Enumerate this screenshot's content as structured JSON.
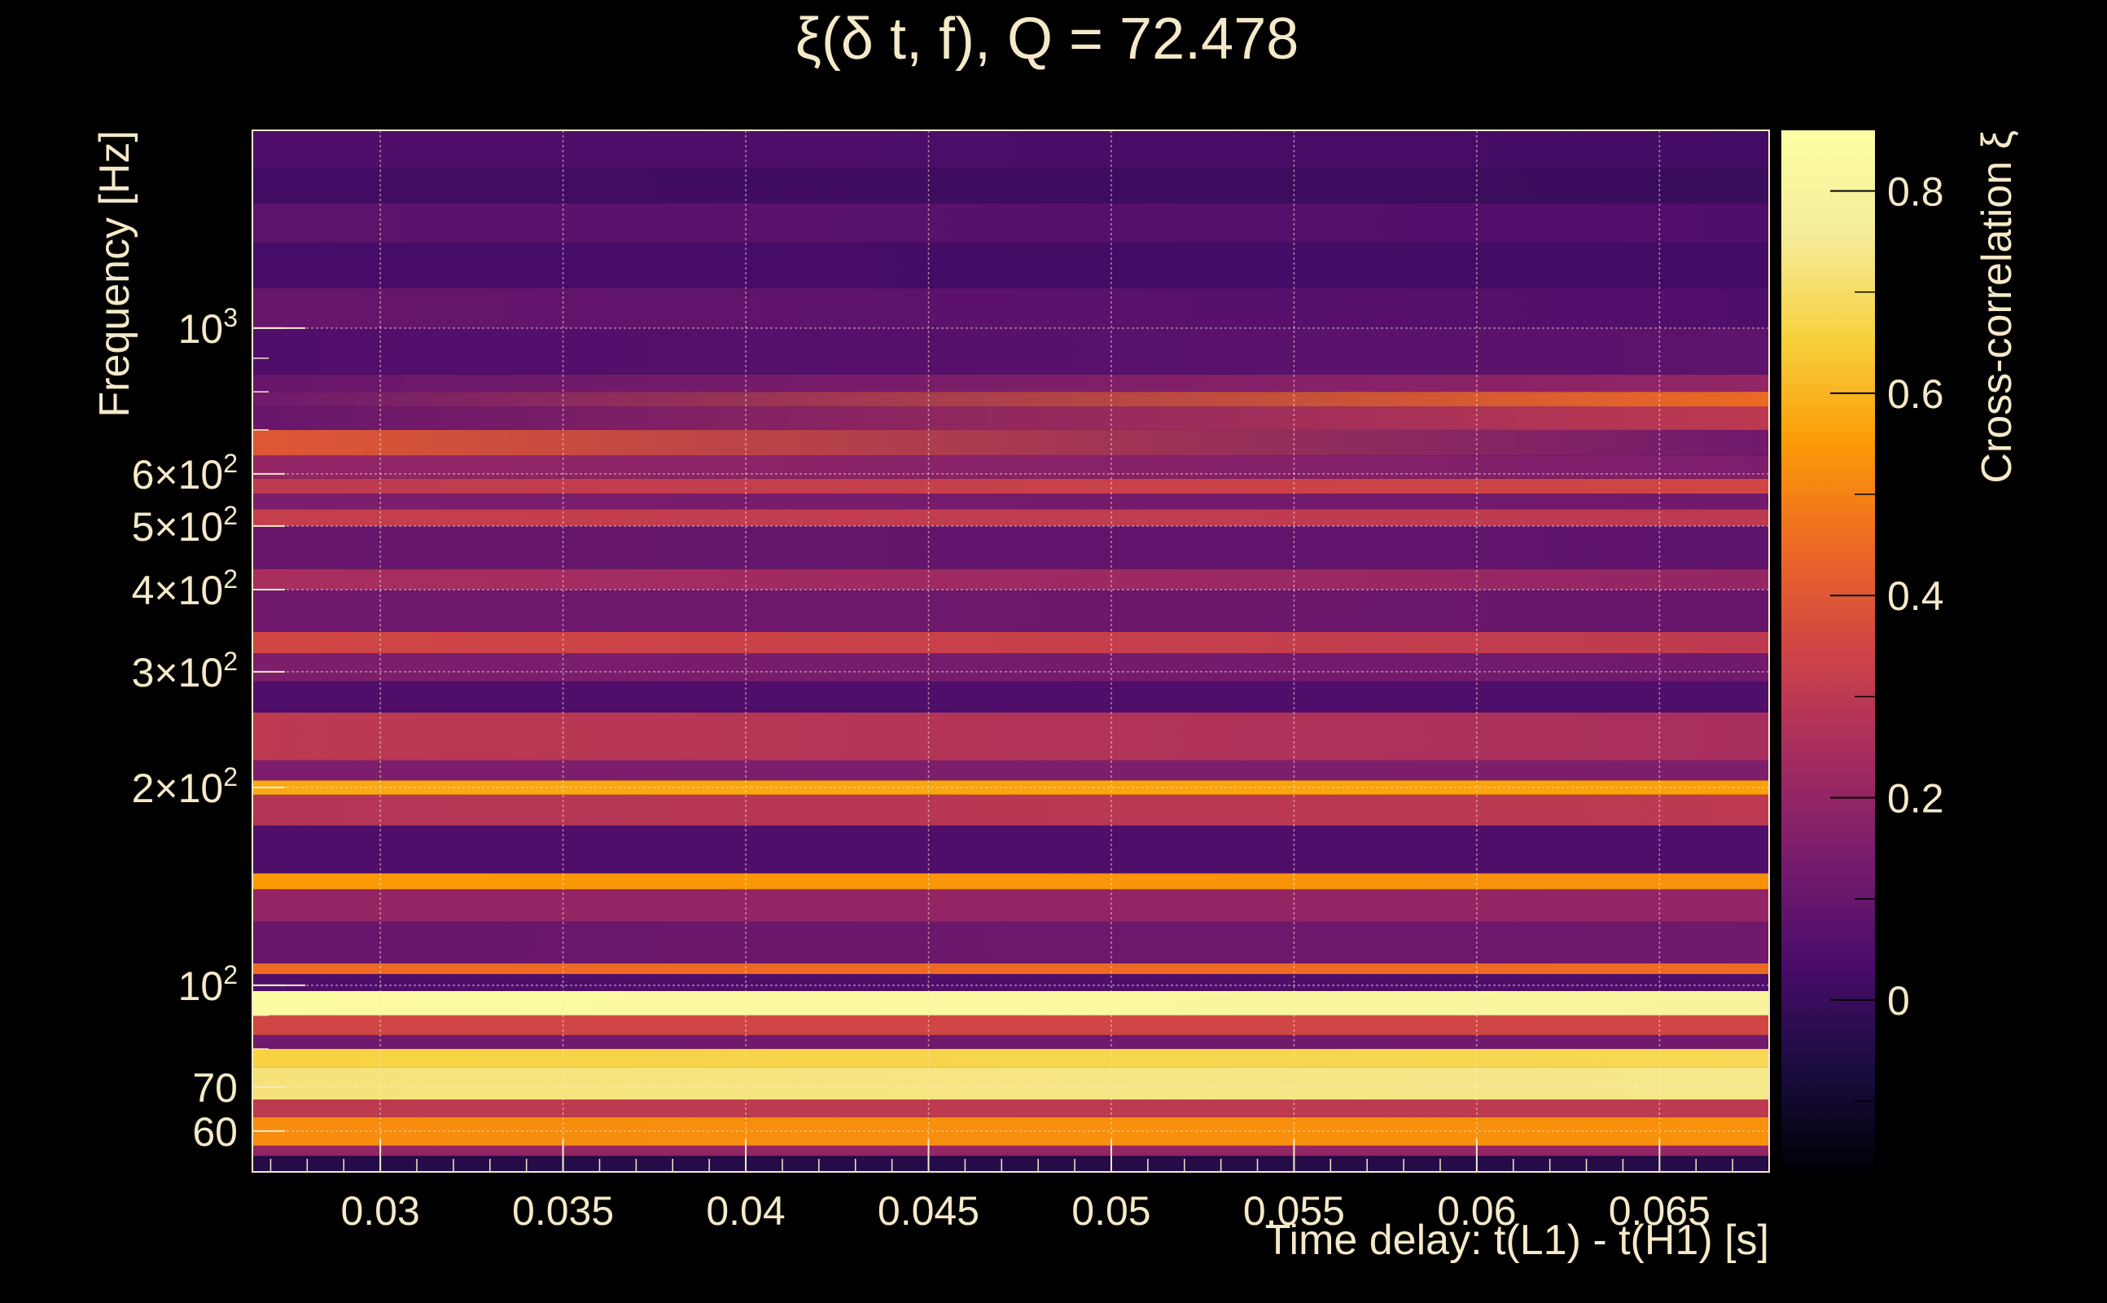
{
  "chart_data": {
    "type": "heatmap",
    "title": "ξ(δ t, f), Q = 72.478",
    "xlabel": "Time delay: t(L1) - t(H1) [s]",
    "ylabel": "Frequency [Hz]",
    "colorbar_label": "Cross-correlation ξ",
    "x_range": [
      0.0265,
      0.068
    ],
    "y_range": [
      52,
      2000
    ],
    "y_scale": "log",
    "z_range": [
      -0.17,
      0.86
    ],
    "grid": true,
    "colormap": "inferno",
    "x_ticks": [
      {
        "value": 0.03,
        "label": "0.03"
      },
      {
        "value": 0.035,
        "label": "0.035"
      },
      {
        "value": 0.04,
        "label": "0.04"
      },
      {
        "value": 0.045,
        "label": "0.045"
      },
      {
        "value": 0.05,
        "label": "0.05"
      },
      {
        "value": 0.055,
        "label": "0.055"
      },
      {
        "value": 0.06,
        "label": "0.06"
      },
      {
        "value": 0.065,
        "label": "0.065"
      }
    ],
    "y_ticks": [
      {
        "value": 60,
        "base": "60",
        "exp": ""
      },
      {
        "value": 70,
        "base": "70",
        "exp": ""
      },
      {
        "value": 100,
        "base": "10",
        "exp": "2"
      },
      {
        "value": 200,
        "base": "2×10",
        "exp": "2"
      },
      {
        "value": 300,
        "base": "3×10",
        "exp": "2"
      },
      {
        "value": 400,
        "base": "4×10",
        "exp": "2"
      },
      {
        "value": 500,
        "base": "5×10",
        "exp": "2"
      },
      {
        "value": 600,
        "base": "6×10",
        "exp": "2"
      },
      {
        "value": 1000,
        "base": "10",
        "exp": "3"
      }
    ],
    "colorbar_ticks": [
      {
        "value": 0,
        "label": "0"
      },
      {
        "value": 0.2,
        "label": "0.2"
      },
      {
        "value": 0.4,
        "label": "0.4"
      },
      {
        "value": 0.6,
        "label": "0.6"
      },
      {
        "value": 0.8,
        "label": "0.8"
      }
    ],
    "frequency_bands": [
      {
        "f_lo": 52,
        "f_hi": 55,
        "xi": -0.05,
        "xi_end": -0.05
      },
      {
        "f_lo": 55,
        "f_hi": 57,
        "xi": 0.2,
        "xi_end": 0.2
      },
      {
        "f_lo": 57,
        "f_hi": 63,
        "xi": 0.52,
        "xi_end": 0.53
      },
      {
        "f_lo": 63,
        "f_hi": 67,
        "xi": 0.3,
        "xi_end": 0.3
      },
      {
        "f_lo": 67,
        "f_hi": 75,
        "xi": 0.72,
        "xi_end": 0.74
      },
      {
        "f_lo": 75,
        "f_hi": 80,
        "xi": 0.66,
        "xi_end": 0.68
      },
      {
        "f_lo": 80,
        "f_hi": 84,
        "xi": 0.12,
        "xi_end": 0.12
      },
      {
        "f_lo": 84,
        "f_hi": 90,
        "xi": 0.35,
        "xi_end": 0.35
      },
      {
        "f_lo": 90,
        "f_hi": 98,
        "xi": 0.84,
        "xi_end": 0.8
      },
      {
        "f_lo": 98,
        "f_hi": 104,
        "xi": 0.05,
        "xi_end": 0.05
      },
      {
        "f_lo": 104,
        "f_hi": 108,
        "xi": 0.45,
        "xi_end": 0.45
      },
      {
        "f_lo": 108,
        "f_hi": 125,
        "xi": 0.1,
        "xi_end": 0.12
      },
      {
        "f_lo": 125,
        "f_hi": 140,
        "xi": 0.2,
        "xi_end": 0.2
      },
      {
        "f_lo": 140,
        "f_hi": 148,
        "xi": 0.55,
        "xi_end": 0.53
      },
      {
        "f_lo": 148,
        "f_hi": 175,
        "xi": 0.05,
        "xi_end": 0.05
      },
      {
        "f_lo": 175,
        "f_hi": 195,
        "xi": 0.28,
        "xi_end": 0.3
      },
      {
        "f_lo": 195,
        "f_hi": 205,
        "xi": 0.58,
        "xi_end": 0.56
      },
      {
        "f_lo": 205,
        "f_hi": 220,
        "xi": 0.15,
        "xi_end": 0.15
      },
      {
        "f_lo": 220,
        "f_hi": 260,
        "xi": 0.3,
        "xi_end": 0.25
      },
      {
        "f_lo": 260,
        "f_hi": 290,
        "xi": 0.05,
        "xi_end": 0.05
      },
      {
        "f_lo": 290,
        "f_hi": 320,
        "xi": 0.15,
        "xi_end": 0.12
      },
      {
        "f_lo": 320,
        "f_hi": 345,
        "xi": 0.35,
        "xi_end": 0.3
      },
      {
        "f_lo": 345,
        "f_hi": 400,
        "xi": 0.12,
        "xi_end": 0.1
      },
      {
        "f_lo": 400,
        "f_hi": 430,
        "xi": 0.25,
        "xi_end": 0.2
      },
      {
        "f_lo": 430,
        "f_hi": 500,
        "xi": 0.1,
        "xi_end": 0.08
      },
      {
        "f_lo": 500,
        "f_hi": 530,
        "xi": 0.32,
        "xi_end": 0.3
      },
      {
        "f_lo": 530,
        "f_hi": 560,
        "xi": 0.15,
        "xi_end": 0.12
      },
      {
        "f_lo": 560,
        "f_hi": 590,
        "xi": 0.3,
        "xi_end": 0.35
      },
      {
        "f_lo": 590,
        "f_hi": 640,
        "xi": 0.2,
        "xi_end": 0.15
      },
      {
        "f_lo": 640,
        "f_hi": 700,
        "xi": 0.4,
        "xi_end": 0.12
      },
      {
        "f_lo": 700,
        "f_hi": 760,
        "xi": 0.1,
        "xi_end": 0.3
      },
      {
        "f_lo": 760,
        "f_hi": 800,
        "xi": 0.12,
        "xi_end": 0.45
      },
      {
        "f_lo": 800,
        "f_hi": 850,
        "xi": 0.1,
        "xi_end": 0.2
      },
      {
        "f_lo": 850,
        "f_hi": 1000,
        "xi": 0.05,
        "xi_end": 0.08
      },
      {
        "f_lo": 1000,
        "f_hi": 1150,
        "xi": 0.1,
        "xi_end": 0.05
      },
      {
        "f_lo": 1150,
        "f_hi": 1350,
        "xi": 0.03,
        "xi_end": 0.02
      },
      {
        "f_lo": 1350,
        "f_hi": 1550,
        "xi": 0.08,
        "xi_end": 0.05
      },
      {
        "f_lo": 1550,
        "f_hi": 1750,
        "xi": 0.02,
        "xi_end": 0.0
      },
      {
        "f_lo": 1750,
        "f_hi": 2000,
        "xi": 0.05,
        "xi_end": 0.02
      }
    ]
  }
}
